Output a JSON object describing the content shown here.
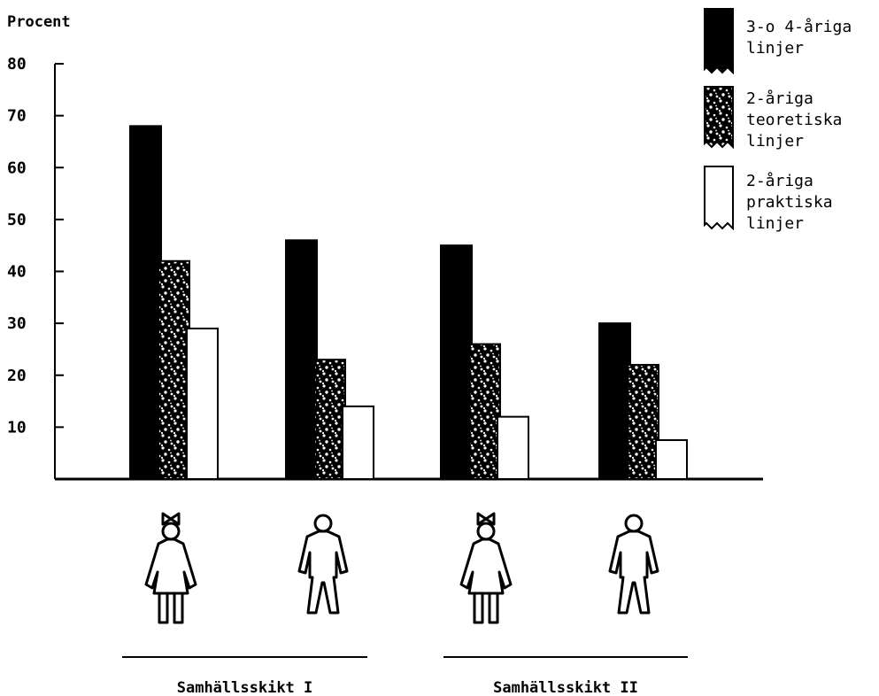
{
  "chart_data": {
    "type": "bar",
    "title": "",
    "ylabel": "Procent",
    "xlabel": "",
    "ylim": [
      0,
      80
    ],
    "yticks": [
      10,
      20,
      30,
      40,
      50,
      60,
      70,
      80
    ],
    "categories": [
      "Flickor",
      "Pojkar",
      "Flickor",
      "Pojkar"
    ],
    "category_icons": [
      "girl-figure-icon",
      "boy-figure-icon",
      "girl-figure-icon",
      "boy-figure-icon"
    ],
    "groups": [
      {
        "label": "Samhällsskikt I",
        "categories": [
          0,
          1
        ]
      },
      {
        "label": "Samhällsskikt II",
        "categories": [
          2,
          3
        ]
      }
    ],
    "series": [
      {
        "name": "3-o 4-åriga linjer",
        "legend_lines": [
          "3-o 4-åriga",
          "linjer"
        ],
        "pattern": "solid-black",
        "values": [
          68,
          46,
          45,
          30
        ]
      },
      {
        "name": "2-åriga teoretiska linjer",
        "legend_lines": [
          "2-åriga",
          "teoretiska",
          "linjer"
        ],
        "pattern": "stipple",
        "values": [
          42,
          23,
          26,
          22
        ]
      },
      {
        "name": "2-åriga praktiska linjer",
        "legend_lines": [
          "2-åriga",
          "praktiska",
          "linjer"
        ],
        "pattern": "white",
        "values": [
          29,
          14,
          12,
          7.5
        ]
      }
    ],
    "grid": false,
    "legend_position": "top-right"
  }
}
